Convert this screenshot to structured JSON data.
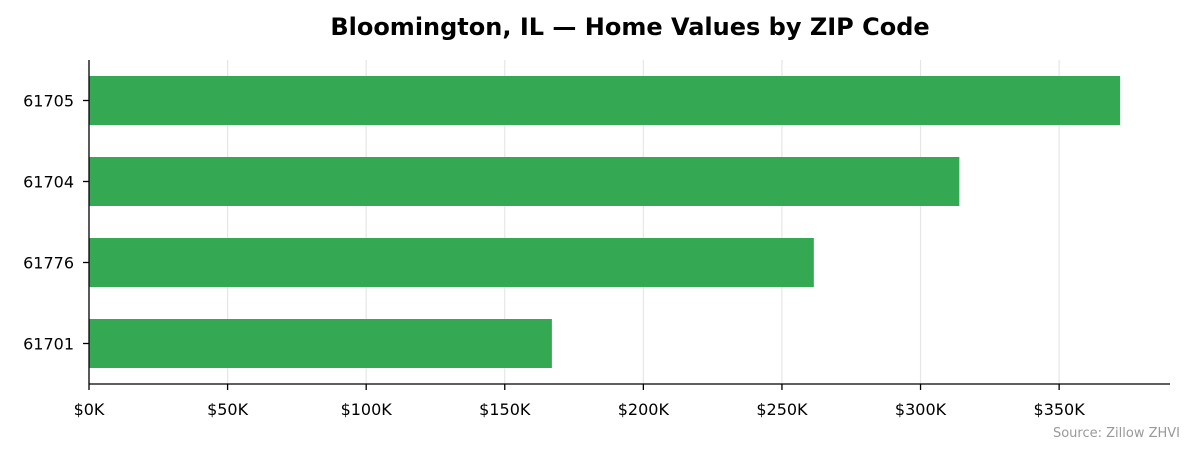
{
  "chart_data": {
    "type": "bar",
    "orientation": "horizontal",
    "title": "Bloomington, IL — Home Values by ZIP Code",
    "xlabel": "",
    "ylabel": "",
    "categories": [
      "61705",
      "61704",
      "61776",
      "61701"
    ],
    "values": [
      372000,
      314000,
      261500,
      167000
    ],
    "xlim": [
      0,
      390000
    ],
    "x_ticks": [
      0,
      50000,
      100000,
      150000,
      200000,
      250000,
      300000,
      350000
    ],
    "x_tick_labels": [
      "$0K",
      "$50K",
      "$100K",
      "$150K",
      "$200K",
      "$250K",
      "$300K",
      "$350K"
    ],
    "grid": "x-axis vertical lines",
    "bar_color": "#34a853",
    "grid_color": "#e6e6e6",
    "axis_color": "#000000",
    "source_text": "Source: Zillow ZHVI"
  }
}
